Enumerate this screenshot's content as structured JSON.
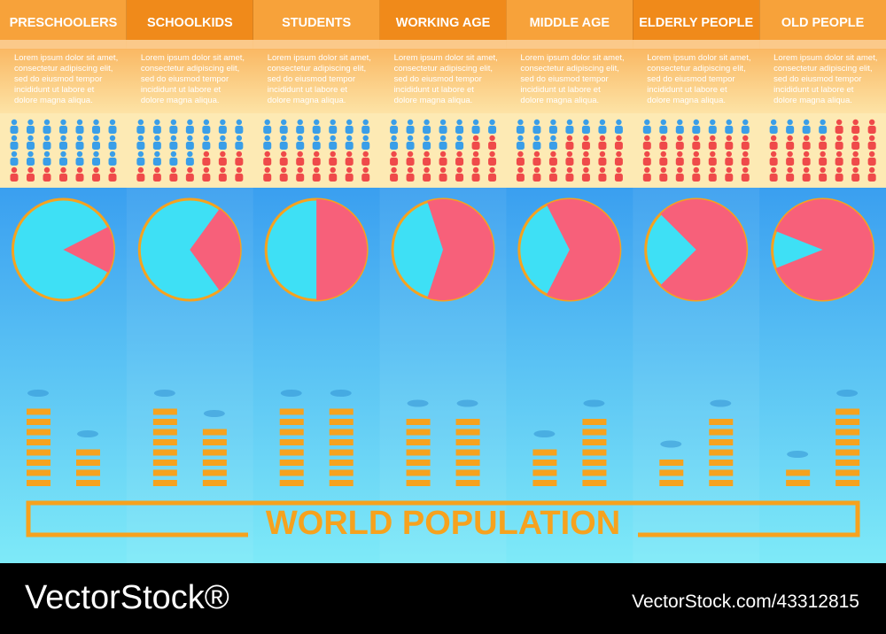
{
  "title": "WORLD POPULATION",
  "columns": [
    {
      "title": "PRESCHOOLERS",
      "text": "Lorem ipsum dolor sit amet, consectetur adipiscing elit, sed do eiusmod tempor incididunt ut labore et dolore magna aliqua.",
      "icons": 28,
      "red_icons": 7,
      "pie_share": 15,
      "bars": [
        8,
        4
      ]
    },
    {
      "title": "SCHOOLKIDS",
      "text": "Lorem ipsum dolor sit amet, consectetur adipiscing elit, sed do eiusmod tempor incididunt ut labore et dolore magna aliqua.",
      "icons": 28,
      "red_icons": 10,
      "pie_share": 30,
      "bars": [
        8,
        6
      ]
    },
    {
      "title": "STUDENTS",
      "text": "Lorem ipsum dolor sit amet, consectetur adipiscing elit, sed do eiusmod tempor incididunt ut labore et dolore magna aliqua.",
      "icons": 28,
      "red_icons": 14,
      "pie_share": 50,
      "bars": [
        8,
        8
      ]
    },
    {
      "title": "WORKING AGE",
      "text": "Lorem ipsum dolor sit amet, consectetur adipiscing elit, sed do eiusmod tempor incididunt ut labore et dolore magna aliqua.",
      "icons": 28,
      "red_icons": 16,
      "pie_share": 60,
      "bars": [
        7,
        7
      ]
    },
    {
      "title": "MIDDLE AGE",
      "text": "Lorem ipsum dolor sit amet, consectetur adipiscing elit, sed do eiusmod tempor incididunt ut labore et dolore magna aliqua.",
      "icons": 28,
      "red_icons": 18,
      "pie_share": 65,
      "bars": [
        4,
        7
      ]
    },
    {
      "title": "ELDERLY PEOPLE",
      "text": "Lorem ipsum dolor sit amet, consectetur adipiscing elit, sed do eiusmod tempor incididunt ut labore et dolore magna aliqua.",
      "icons": 28,
      "red_icons": 21,
      "pie_share": 75,
      "bars": [
        3,
        7
      ]
    },
    {
      "title": "OLD PEOPLE",
      "text": "Lorem ipsum dolor sit amet, consectetur adipiscing elit, sed do eiusmod tempor incididunt ut labore et dolore magna aliqua.",
      "icons": 28,
      "red_icons": 24,
      "pie_share": 88,
      "bars": [
        2,
        8
      ]
    }
  ],
  "footer": {
    "brand": "VectorStock®",
    "id": "VectorStock.com/43312815"
  }
}
